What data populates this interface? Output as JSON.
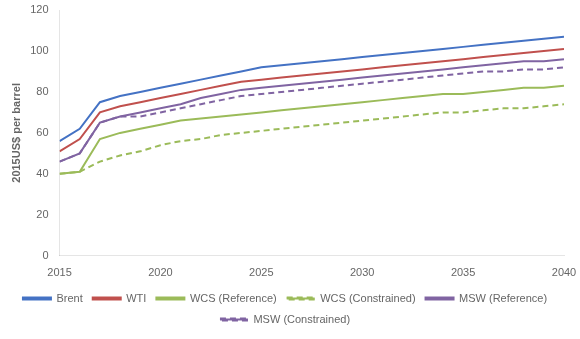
{
  "chart_data": {
    "type": "line",
    "ylabel": "2015US$ per barrel",
    "x": [
      2015,
      2016,
      2017,
      2018,
      2019,
      2020,
      2021,
      2022,
      2023,
      2024,
      2025,
      2026,
      2027,
      2028,
      2029,
      2030,
      2031,
      2032,
      2033,
      2034,
      2035,
      2036,
      2037,
      2038,
      2039,
      2040
    ],
    "series": [
      {
        "name": "Brent",
        "color": "#4472C4",
        "line_style": "solid",
        "values": [
          56,
          62,
          75,
          78,
          80,
          82,
          84,
          86,
          88,
          90,
          92,
          93,
          94,
          95,
          96,
          97,
          98,
          99,
          100,
          101,
          102,
          103,
          104,
          105,
          106,
          107
        ]
      },
      {
        "name": "WTI",
        "color": "#C0504D",
        "line_style": "solid",
        "values": [
          51,
          57,
          70,
          73,
          75,
          77,
          79,
          81,
          83,
          85,
          86,
          87,
          88,
          89,
          90,
          91,
          92,
          93,
          94,
          95,
          96,
          97,
          98,
          99,
          100,
          101
        ]
      },
      {
        "name": "WCS (Reference)",
        "color": "#9BBB59",
        "line_style": "solid",
        "values": [
          40,
          41,
          57,
          60,
          62,
          64,
          66,
          67,
          68,
          69,
          70,
          71,
          72,
          73,
          74,
          75,
          76,
          77,
          78,
          79,
          79,
          80,
          81,
          82,
          82,
          83
        ]
      },
      {
        "name": "WCS (Constrained)",
        "color": "#9BBB59",
        "line_style": "dashed",
        "values": [
          40,
          41,
          46,
          49,
          51,
          54,
          56,
          57,
          59,
          60,
          61,
          62,
          63,
          64,
          65,
          66,
          67,
          68,
          69,
          70,
          70,
          71,
          72,
          72,
          73,
          74
        ]
      },
      {
        "name": "MSW (Reference)",
        "color": "#8064A2",
        "line_style": "solid",
        "values": [
          46,
          50,
          65,
          68,
          70,
          72,
          74,
          77,
          79,
          81,
          82,
          83,
          84,
          85,
          86,
          87,
          88,
          89,
          90,
          91,
          92,
          93,
          94,
          95,
          95,
          96
        ]
      },
      {
        "name": "MSW (Constrained)",
        "color": "#8064A2",
        "line_style": "dashed",
        "values": [
          46,
          50,
          65,
          68,
          68,
          70,
          72,
          74,
          76,
          78,
          79,
          80,
          81,
          82,
          83,
          84,
          85,
          86,
          87,
          88,
          89,
          90,
          90,
          91,
          91,
          92
        ]
      }
    ],
    "xlim": [
      2015,
      2040
    ],
    "xticks": [
      2015,
      2020,
      2025,
      2030,
      2035,
      2040
    ],
    "ylim": [
      0,
      120
    ],
    "yticks": [
      0,
      20,
      40,
      60,
      80,
      100,
      120
    ],
    "grid": false,
    "legend": "bottom"
  }
}
